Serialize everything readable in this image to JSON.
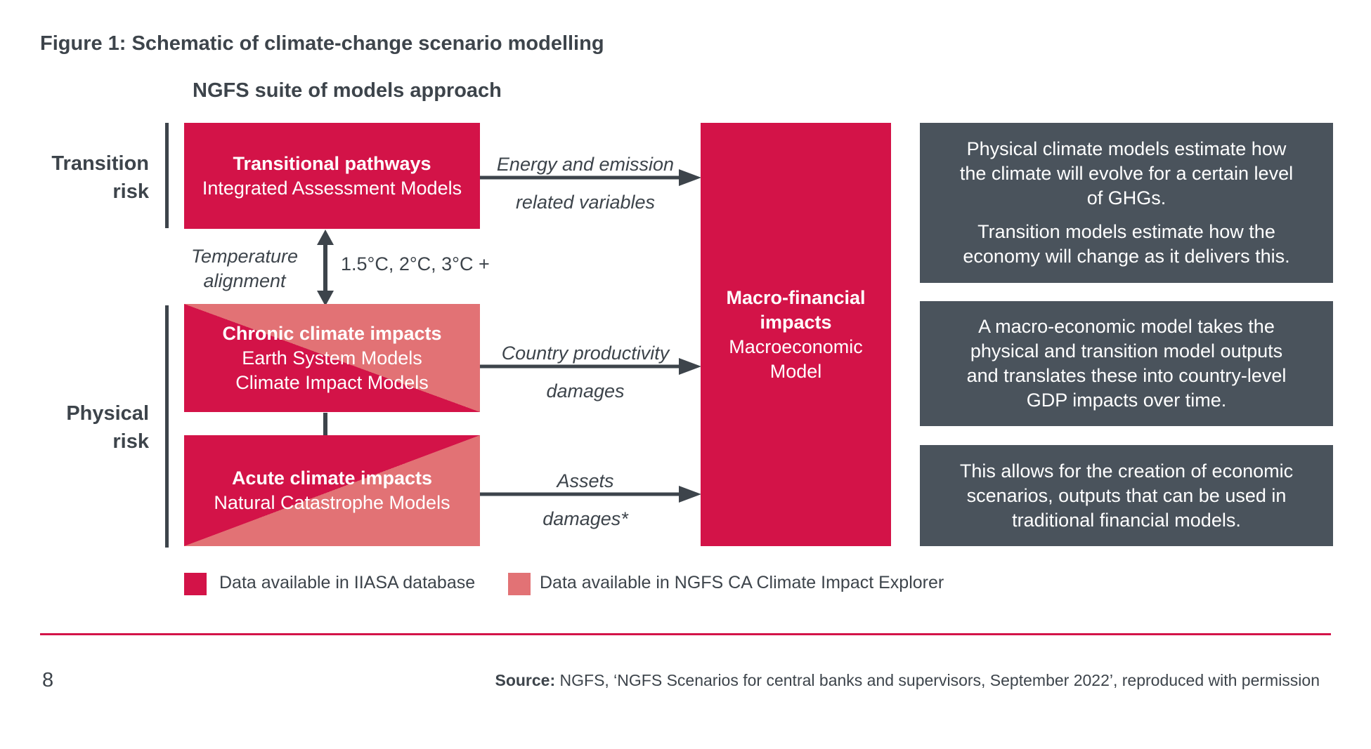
{
  "figure_title": "Figure 1: Schematic of climate-change scenario modelling",
  "subtitle": "NGFS suite of models approach",
  "risk_labels": {
    "transition": [
      "Transition",
      "risk"
    ],
    "physical": [
      "Physical",
      "risk"
    ]
  },
  "boxes": {
    "transitional": {
      "title": "Transitional pathways",
      "lines": [
        "Integrated Assessment Models"
      ]
    },
    "chronic": {
      "title": "Chronic climate impacts",
      "lines": [
        "Earth System Models",
        "Climate Impact Models"
      ]
    },
    "acute": {
      "title": "Acute climate impacts",
      "lines": [
        "Natural Catastrophe Models"
      ]
    },
    "macro": {
      "title": [
        "Macro-financial",
        "impacts"
      ],
      "lines": [
        "Macroeconomic",
        "Model"
      ]
    }
  },
  "temperature": {
    "label": [
      "Temperature",
      "alignment"
    ],
    "values": "1.5°C, 2°C, 3°C +"
  },
  "arrow_labels": {
    "energy": [
      "Energy and emission",
      "related variables"
    ],
    "productivity": [
      "Country productivity",
      "damages"
    ],
    "assets": [
      "Assets",
      "damages*"
    ]
  },
  "info_boxes": [
    {
      "paragraphs": [
        "Physical climate models estimate how the climate will evolve for a certain level of GHGs.",
        "Transition models estimate how the economy will change as it delivers this."
      ]
    },
    {
      "paragraphs": [
        "A macro-economic model takes the physical and transition model outputs and translates these into country-level GDP impacts over time."
      ]
    },
    {
      "paragraphs": [
        "This allows for the creation of economic scenarios, outputs that can be used in traditional financial models."
      ]
    }
  ],
  "legend": [
    {
      "label": "Data available in IIASA database",
      "color": "#d31348"
    },
    {
      "label": "Data available in NGFS CA Climate Impact Explorer",
      "color": "#e27275"
    }
  ],
  "footer": {
    "page_number": "8",
    "source_label": "Source:",
    "source_text": "NGFS, ‘NGFS Scenarios for central banks and supervisors, September 2022’, reproduced with permission"
  },
  "colors": {
    "dark_red": "#d31348",
    "light_red": "#e27275",
    "slate": "#4a535c",
    "text": "#3d444b"
  }
}
